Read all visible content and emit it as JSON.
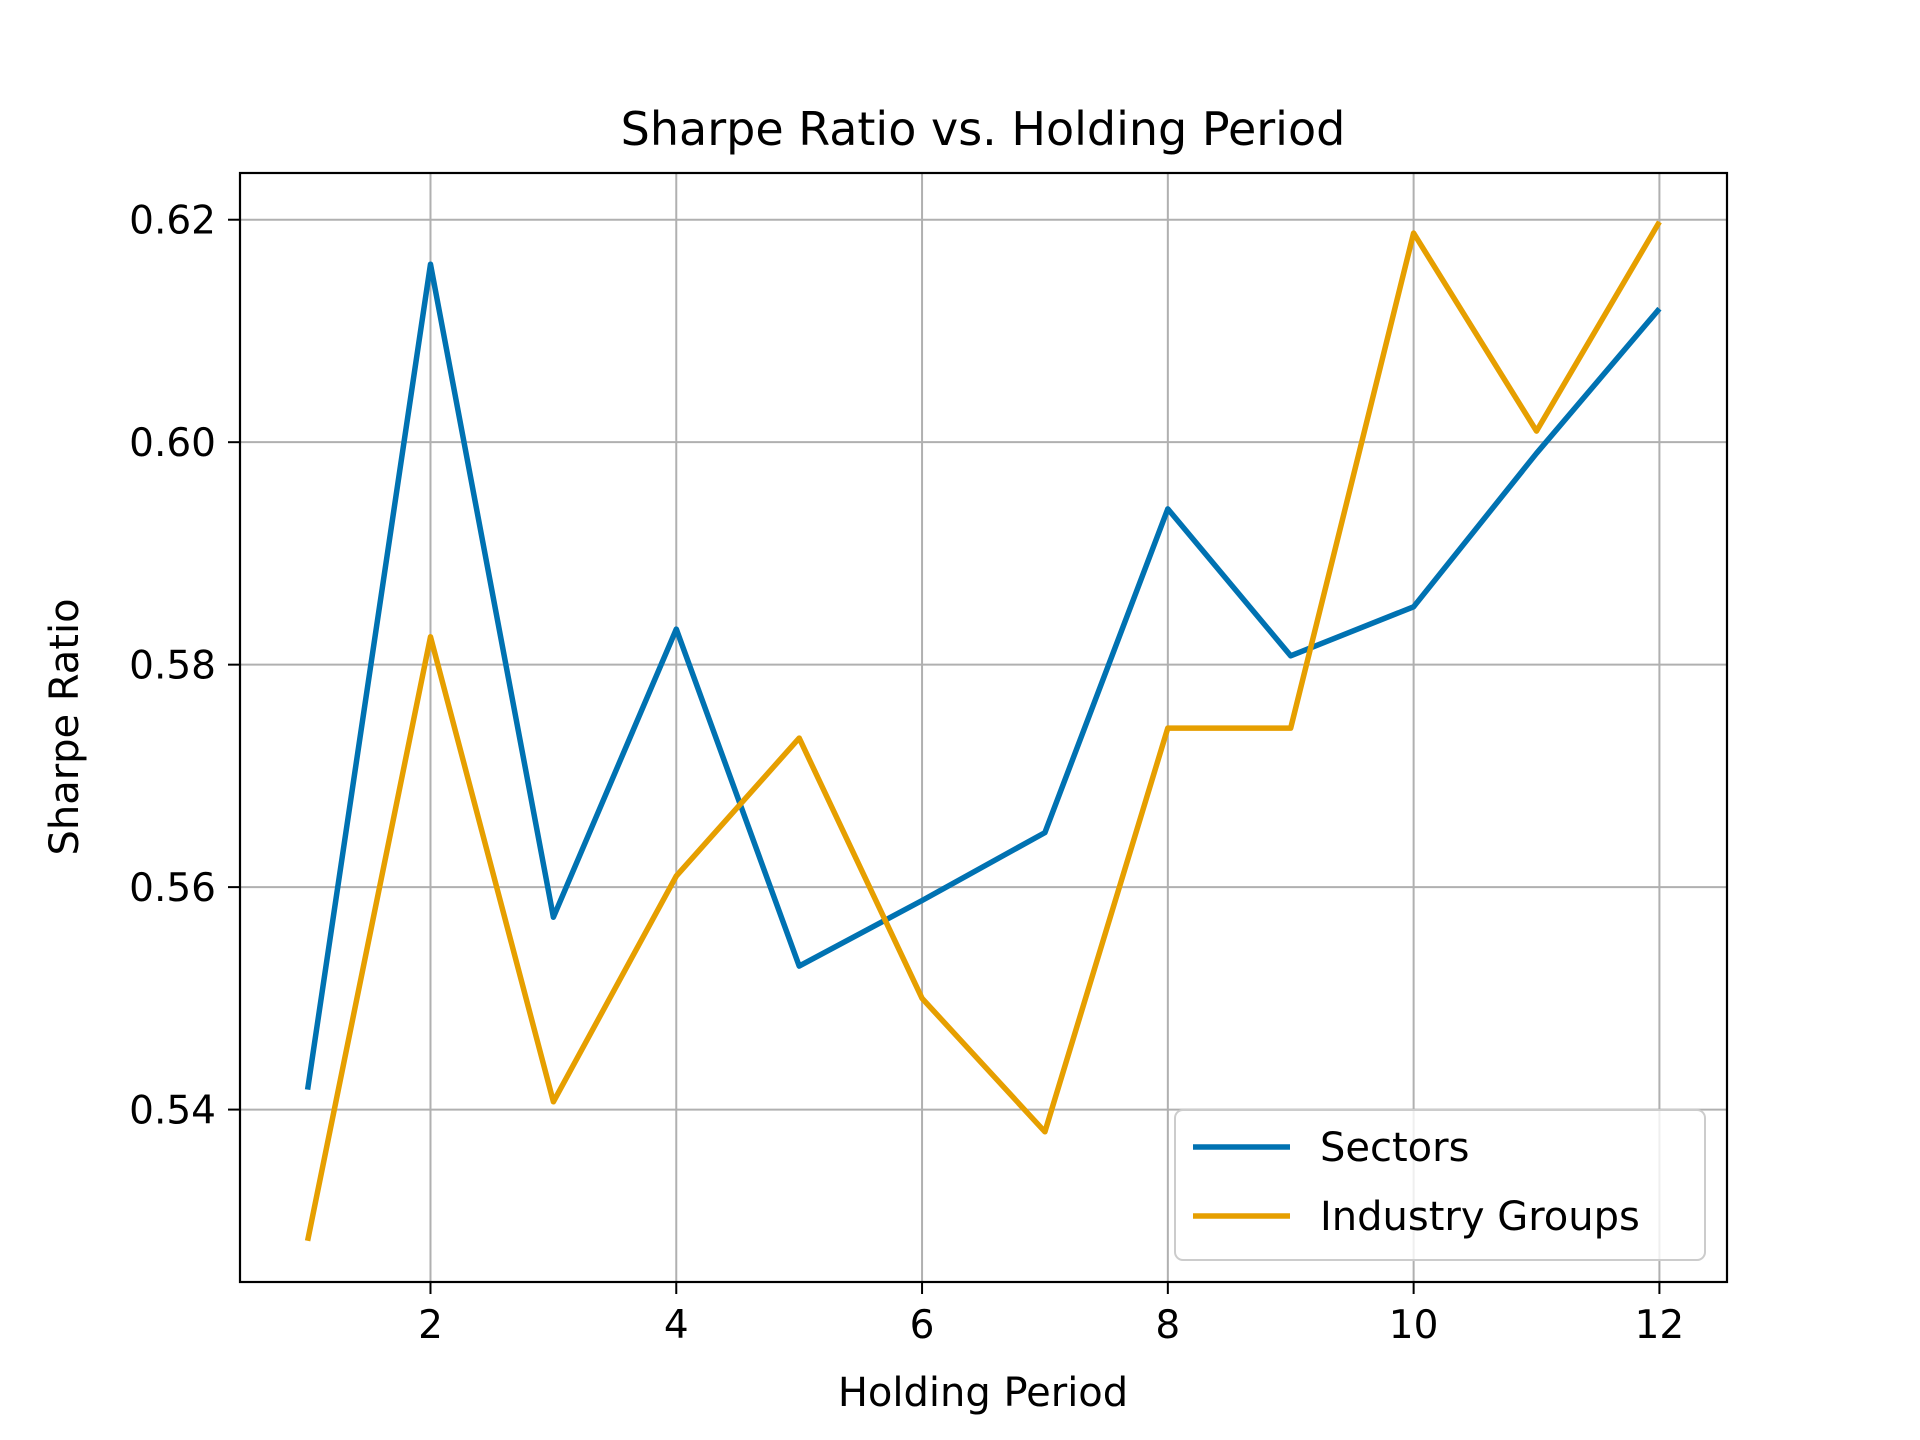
{
  "chart_data": {
    "type": "line",
    "title": "Sharpe Ratio vs. Holding Period",
    "xlabel": "Holding Period",
    "ylabel": "Sharpe Ratio",
    "x": [
      1,
      2,
      3,
      4,
      5,
      6,
      7,
      8,
      9,
      10,
      11,
      12
    ],
    "xlim": [
      0.45,
      12.55
    ],
    "ylim": [
      0.5245,
      0.6242
    ],
    "xticks": [
      2,
      4,
      6,
      8,
      10,
      12
    ],
    "xtick_labels": [
      "2",
      "4",
      "6",
      "8",
      "10",
      "12"
    ],
    "yticks": [
      0.54,
      0.56,
      0.58,
      0.6,
      0.62
    ],
    "ytick_labels": [
      "0.54",
      "0.56",
      "0.58",
      "0.60",
      "0.62"
    ],
    "grid": true,
    "legend_position": "bottom-right",
    "series": [
      {
        "name": "Sectors",
        "color": "#0072b2",
        "values": [
          0.5418,
          0.616,
          0.5573,
          0.5832,
          0.5529,
          0.5588,
          0.5649,
          0.594,
          0.5808,
          0.5852,
          0.599,
          0.612
        ]
      },
      {
        "name": "Industry Groups",
        "color": "#e69f00",
        "values": [
          0.5282,
          0.5825,
          0.5407,
          0.561,
          0.5734,
          0.55,
          0.538,
          0.5743,
          0.5743,
          0.6188,
          0.601,
          0.6198
        ]
      }
    ]
  }
}
